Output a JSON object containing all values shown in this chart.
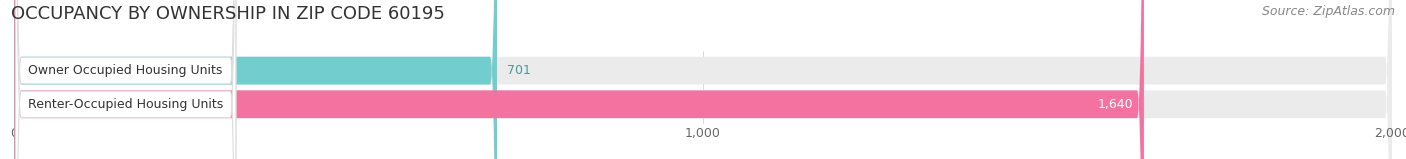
{
  "title": "OCCUPANCY BY OWNERSHIP IN ZIP CODE 60195",
  "source": "Source: ZipAtlas.com",
  "categories": [
    "Owner Occupied Housing Units",
    "Renter-Occupied Housing Units"
  ],
  "values": [
    701,
    1640
  ],
  "bar_colors": [
    "#72cece",
    "#f472a0"
  ],
  "bar_bg_color": "#ebebeb",
  "label_box_color": "#ffffff",
  "label_border_color": "#dddddd",
  "xlim": [
    0,
    2000
  ],
  "xticks": [
    0,
    1000,
    2000
  ],
  "xtick_labels": [
    "0",
    "1,000",
    "2,000"
  ],
  "value_labels": [
    "701",
    "1,640"
  ],
  "value_colors": [
    "#4a9999",
    "#ffffff"
  ],
  "title_fontsize": 13,
  "source_fontsize": 9,
  "label_fontsize": 9,
  "value_fontsize": 9,
  "tick_fontsize": 9,
  "figsize": [
    14.06,
    1.59
  ],
  "dpi": 100
}
